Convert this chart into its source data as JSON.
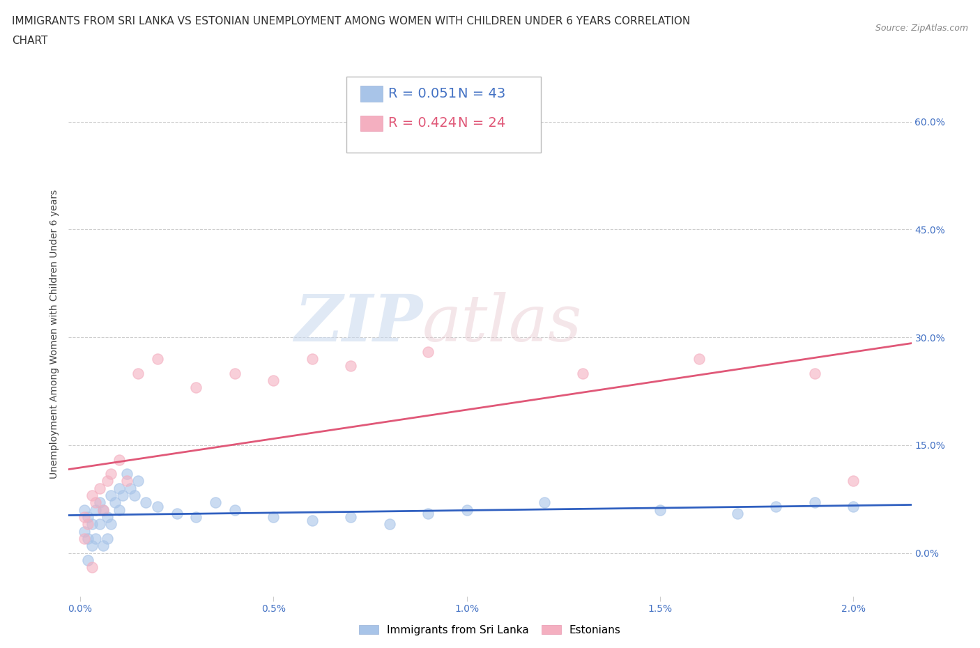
{
  "title_line1": "IMMIGRANTS FROM SRI LANKA VS ESTONIAN UNEMPLOYMENT AMONG WOMEN WITH CHILDREN UNDER 6 YEARS CORRELATION",
  "title_line2": "CHART",
  "source": "Source: ZipAtlas.com",
  "xlabel_ticks": [
    "0.0%",
    "0.5%",
    "1.0%",
    "1.5%",
    "2.0%"
  ],
  "xlabel_vals": [
    0.0,
    0.005,
    0.01,
    0.015,
    0.02
  ],
  "ylabel": "Unemployment Among Women with Children Under 6 years",
  "ylabel_ticks": [
    "0.0%",
    "15.0%",
    "30.0%",
    "45.0%",
    "60.0%"
  ],
  "ylabel_vals": [
    0.0,
    0.15,
    0.3,
    0.45,
    0.6
  ],
  "xlim": [
    -0.0003,
    0.0215
  ],
  "ylim": [
    -0.06,
    0.67
  ],
  "grid_color": "#cccccc",
  "bg_color": "#ffffff",
  "watermark_zip": "ZIP",
  "watermark_atlas": "atlas",
  "color_sri_lanka": "#a8c4e8",
  "color_estonian": "#f4afc0",
  "color_line_sri_lanka": "#3060c0",
  "color_line_estonian": "#e05878",
  "sri_lanka_x": [
    0.0001,
    0.0001,
    0.0002,
    0.0002,
    0.0002,
    0.0003,
    0.0003,
    0.0004,
    0.0004,
    0.0005,
    0.0005,
    0.0006,
    0.0006,
    0.0007,
    0.0007,
    0.0008,
    0.0008,
    0.0009,
    0.001,
    0.001,
    0.0011,
    0.0012,
    0.0013,
    0.0014,
    0.0015,
    0.0017,
    0.002,
    0.0025,
    0.003,
    0.0035,
    0.004,
    0.005,
    0.006,
    0.007,
    0.008,
    0.009,
    0.01,
    0.012,
    0.015,
    0.017,
    0.018,
    0.019,
    0.02
  ],
  "sri_lanka_y": [
    0.06,
    0.03,
    0.05,
    0.02,
    -0.01,
    0.04,
    0.01,
    0.06,
    0.02,
    0.07,
    0.04,
    0.06,
    0.01,
    0.05,
    0.02,
    0.08,
    0.04,
    0.07,
    0.09,
    0.06,
    0.08,
    0.11,
    0.09,
    0.08,
    0.1,
    0.07,
    0.065,
    0.055,
    0.05,
    0.07,
    0.06,
    0.05,
    0.045,
    0.05,
    0.04,
    0.055,
    0.06,
    0.07,
    0.06,
    0.055,
    0.065,
    0.07,
    0.065
  ],
  "estonian_x": [
    0.0001,
    0.0001,
    0.0002,
    0.0003,
    0.0003,
    0.0004,
    0.0005,
    0.0006,
    0.0007,
    0.0008,
    0.001,
    0.0012,
    0.0015,
    0.002,
    0.003,
    0.004,
    0.005,
    0.006,
    0.007,
    0.009,
    0.013,
    0.016,
    0.019,
    0.02
  ],
  "estonian_y": [
    0.05,
    0.02,
    0.04,
    0.08,
    -0.02,
    0.07,
    0.09,
    0.06,
    0.1,
    0.11,
    0.13,
    0.1,
    0.25,
    0.27,
    0.23,
    0.25,
    0.24,
    0.27,
    0.26,
    0.28,
    0.25,
    0.27,
    0.25,
    0.1
  ],
  "title_fontsize": 11,
  "tick_fontsize": 10,
  "ylabel_fontsize": 10,
  "source_fontsize": 9,
  "legend_fontsize": 14,
  "color_r_blue": "#4472c4",
  "color_r_pink": "#e05878",
  "color_n_blue": "#4472c4",
  "color_n_pink": "#e05878"
}
